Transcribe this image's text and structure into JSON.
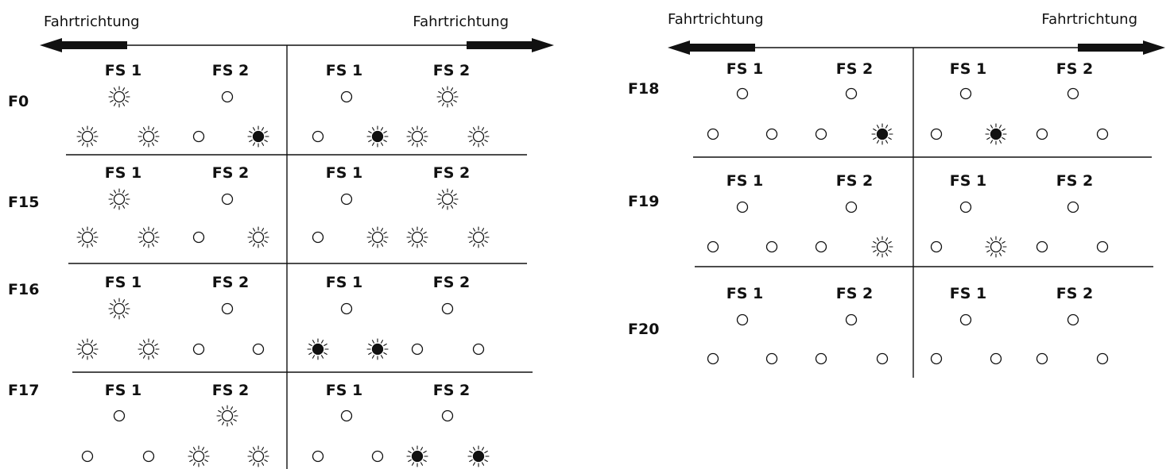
{
  "colors": {
    "ink": "#111111",
    "paper": "#ffffff"
  },
  "icons": {
    "off": "lamp-off-icon",
    "on": "lamp-on-icon",
    "active": "lamp-active-icon"
  },
  "legend_states": [
    "off",
    "on",
    "active"
  ],
  "panels": [
    {
      "left_direction_label": "Fahrtrichtung",
      "right_direction_label": "Fahrtrichtung",
      "rows": [
        {
          "label": "F0",
          "left": {
            "fs1": "FS 1",
            "fs2": "FS 2",
            "top": [
              "on",
              "off"
            ],
            "bottom": [
              "on",
              "on",
              "off",
              "active"
            ]
          },
          "right": {
            "fs1": "FS 1",
            "fs2": "FS 2",
            "top": [
              "off",
              "on"
            ],
            "bottom": [
              "off",
              "active",
              "on",
              "on"
            ]
          }
        },
        {
          "label": "F15",
          "left": {
            "fs1": "FS 1",
            "fs2": "FS 2",
            "top": [
              "on",
              "off"
            ],
            "bottom": [
              "on",
              "on",
              "off",
              "on"
            ]
          },
          "right": {
            "fs1": "FS 1",
            "fs2": "FS 2",
            "top": [
              "off",
              "on"
            ],
            "bottom": [
              "off",
              "on",
              "on",
              "on"
            ]
          }
        },
        {
          "label": "F16",
          "left": {
            "fs1": "FS 1",
            "fs2": "FS 2",
            "top": [
              "on",
              "off"
            ],
            "bottom": [
              "on",
              "on",
              "off",
              "off"
            ]
          },
          "right": {
            "fs1": "FS 1",
            "fs2": "FS 2",
            "top": [
              "off",
              "off"
            ],
            "bottom": [
              "active",
              "active",
              "off",
              "off"
            ]
          }
        },
        {
          "label": "F17",
          "left": {
            "fs1": "FS 1",
            "fs2": "FS 2",
            "top": [
              "off",
              "on"
            ],
            "bottom": [
              "off",
              "off",
              "on",
              "on"
            ]
          },
          "right": {
            "fs1": "FS 1",
            "fs2": "FS 2",
            "top": [
              "off",
              "off"
            ],
            "bottom": [
              "off",
              "off",
              "active",
              "active"
            ]
          }
        }
      ]
    },
    {
      "left_direction_label": "Fahrtrichtung",
      "right_direction_label": "Fahrtrichtung",
      "rows": [
        {
          "label": "F18",
          "left": {
            "fs1": "FS 1",
            "fs2": "FS 2",
            "top": [
              "off",
              "off"
            ],
            "bottom": [
              "off",
              "off",
              "off",
              "active"
            ]
          },
          "right": {
            "fs1": "FS 1",
            "fs2": "FS 2",
            "top": [
              "off",
              "off"
            ],
            "bottom": [
              "off",
              "active",
              "off",
              "off"
            ]
          }
        },
        {
          "label": "F19",
          "left": {
            "fs1": "FS 1",
            "fs2": "FS 2",
            "top": [
              "off",
              "off"
            ],
            "bottom": [
              "off",
              "off",
              "off",
              "on"
            ]
          },
          "right": {
            "fs1": "FS 1",
            "fs2": "FS 2",
            "top": [
              "off",
              "off"
            ],
            "bottom": [
              "off",
              "on",
              "off",
              "off"
            ]
          }
        },
        {
          "label": "F20",
          "left": {
            "fs1": "FS 1",
            "fs2": "FS 2",
            "top": [
              "off",
              "off"
            ],
            "bottom": [
              "off",
              "off",
              "off",
              "off"
            ]
          },
          "right": {
            "fs1": "FS 1",
            "fs2": "FS 2",
            "top": [
              "off",
              "off"
            ],
            "bottom": [
              "off",
              "off",
              "off",
              "off"
            ]
          }
        }
      ]
    }
  ]
}
